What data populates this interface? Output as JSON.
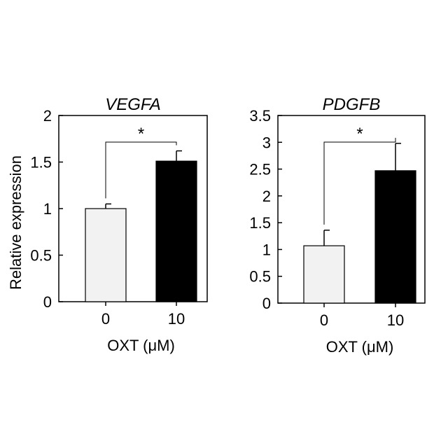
{
  "chart_data": [
    {
      "type": "bar",
      "title": "VEGFA",
      "ylabel": "Relative expression",
      "xlabel": "OXT (μM)",
      "categories": [
        "0",
        "10"
      ],
      "values": [
        1.0,
        1.51
      ],
      "errors": [
        0.05,
        0.11
      ],
      "ylim": [
        0,
        2
      ],
      "yticks": [
        "0",
        "0.5",
        "1",
        "1.5",
        "2"
      ],
      "bar_colors": [
        "#f2f2f2",
        "#000000"
      ],
      "significance": {
        "from": 0,
        "to": 1,
        "label": "*"
      },
      "grid": false
    },
    {
      "type": "bar",
      "title": "PDGFB",
      "ylabel": "",
      "xlabel": "OXT (μM)",
      "categories": [
        "0",
        "10"
      ],
      "values": [
        1.07,
        2.47
      ],
      "errors": [
        0.29,
        0.51
      ],
      "ylim": [
        0,
        3.5
      ],
      "yticks": [
        "0",
        "0.5",
        "1",
        "1.5",
        "2",
        "2.5",
        "3",
        "3.5"
      ],
      "bar_colors": [
        "#f2f2f2",
        "#000000"
      ],
      "significance": {
        "from": 0,
        "to": 1,
        "label": "*"
      },
      "grid": false
    }
  ]
}
